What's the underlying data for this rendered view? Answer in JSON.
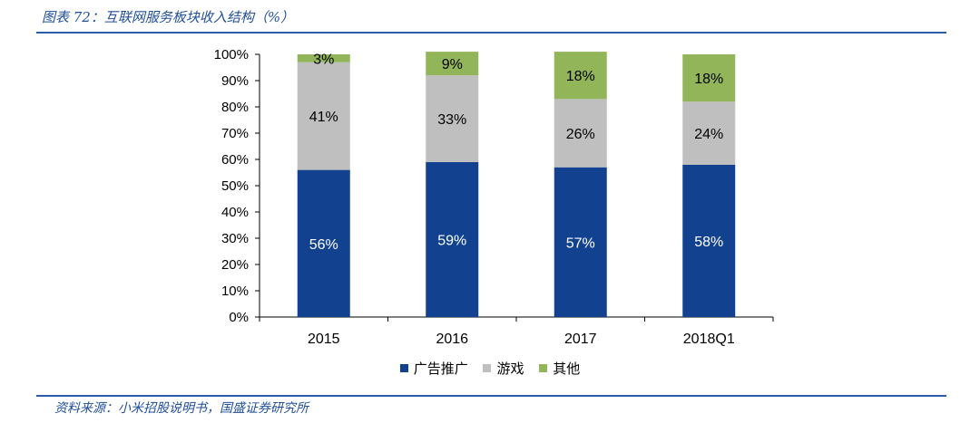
{
  "figure": {
    "title": "图表 72：互联网服务板块收入结构（%）",
    "source": "资料来源：小米招股说明书，国盛证券研究所"
  },
  "colors": {
    "accent": "#1f4e9a",
    "series": [
      "#12428f",
      "#bfbfbf",
      "#93b55a"
    ]
  },
  "chart_data": {
    "type": "bar",
    "stacked": true,
    "categories": [
      "2015",
      "2016",
      "2017",
      "2018Q1"
    ],
    "series": [
      {
        "name": "广告推广",
        "values": [
          56,
          59,
          57,
          58
        ],
        "labels": [
          "56%",
          "59%",
          "57%",
          "58%"
        ]
      },
      {
        "name": "游戏",
        "values": [
          41,
          33,
          26,
          24
        ],
        "labels": [
          "41%",
          "33%",
          "26%",
          "24%"
        ]
      },
      {
        "name": "其他",
        "values": [
          3,
          9,
          18,
          18
        ],
        "labels": [
          "3%",
          "9%",
          "18%",
          "18%"
        ]
      }
    ],
    "yticks": [
      "0%",
      "10%",
      "20%",
      "30%",
      "40%",
      "50%",
      "60%",
      "70%",
      "80%",
      "90%",
      "100%"
    ],
    "ylim": [
      0,
      100
    ],
    "title": "",
    "xlabel": "",
    "ylabel": "",
    "grid": false,
    "legend_position": "bottom"
  }
}
